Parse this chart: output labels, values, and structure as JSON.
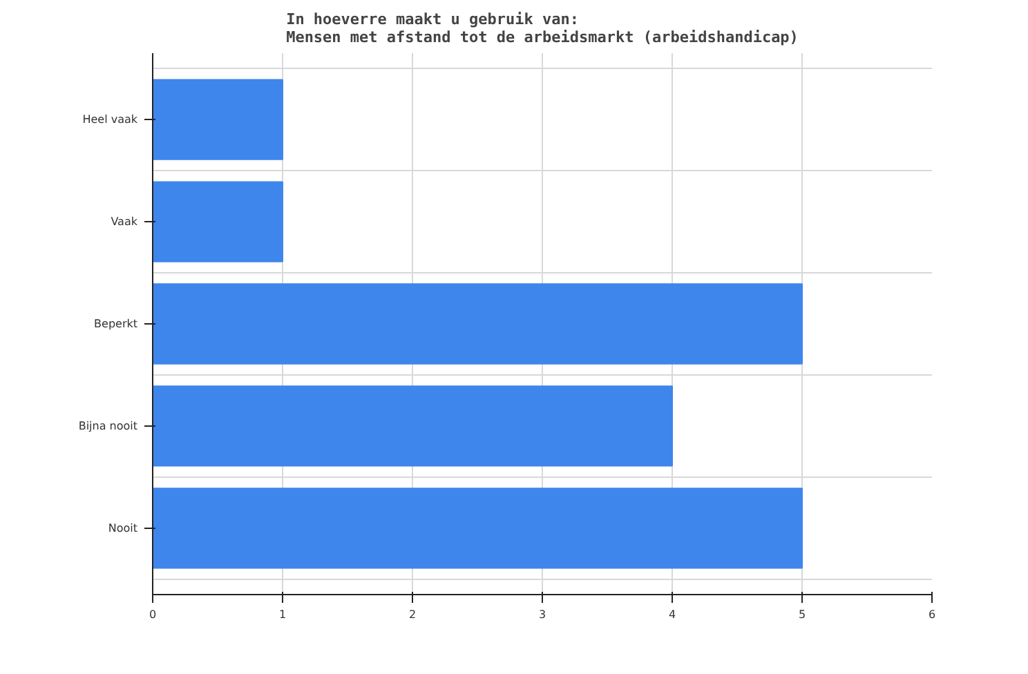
{
  "chart_data": {
    "type": "bar",
    "orientation": "horizontal",
    "title": "In hoeverre maakt u gebruik van:\nMensen met afstand tot de arbeidsmarkt (arbeidshandicap)",
    "categories": [
      "Heel vaak",
      "Vaak",
      "Beperkt",
      "Bijna nooit",
      "Nooit"
    ],
    "values": [
      1,
      1,
      5,
      4,
      5
    ],
    "color": "#3f86ec",
    "xlim": [
      0,
      6
    ],
    "xticks": [
      0,
      1,
      2,
      3,
      4,
      5,
      6
    ],
    "grid": true
  }
}
